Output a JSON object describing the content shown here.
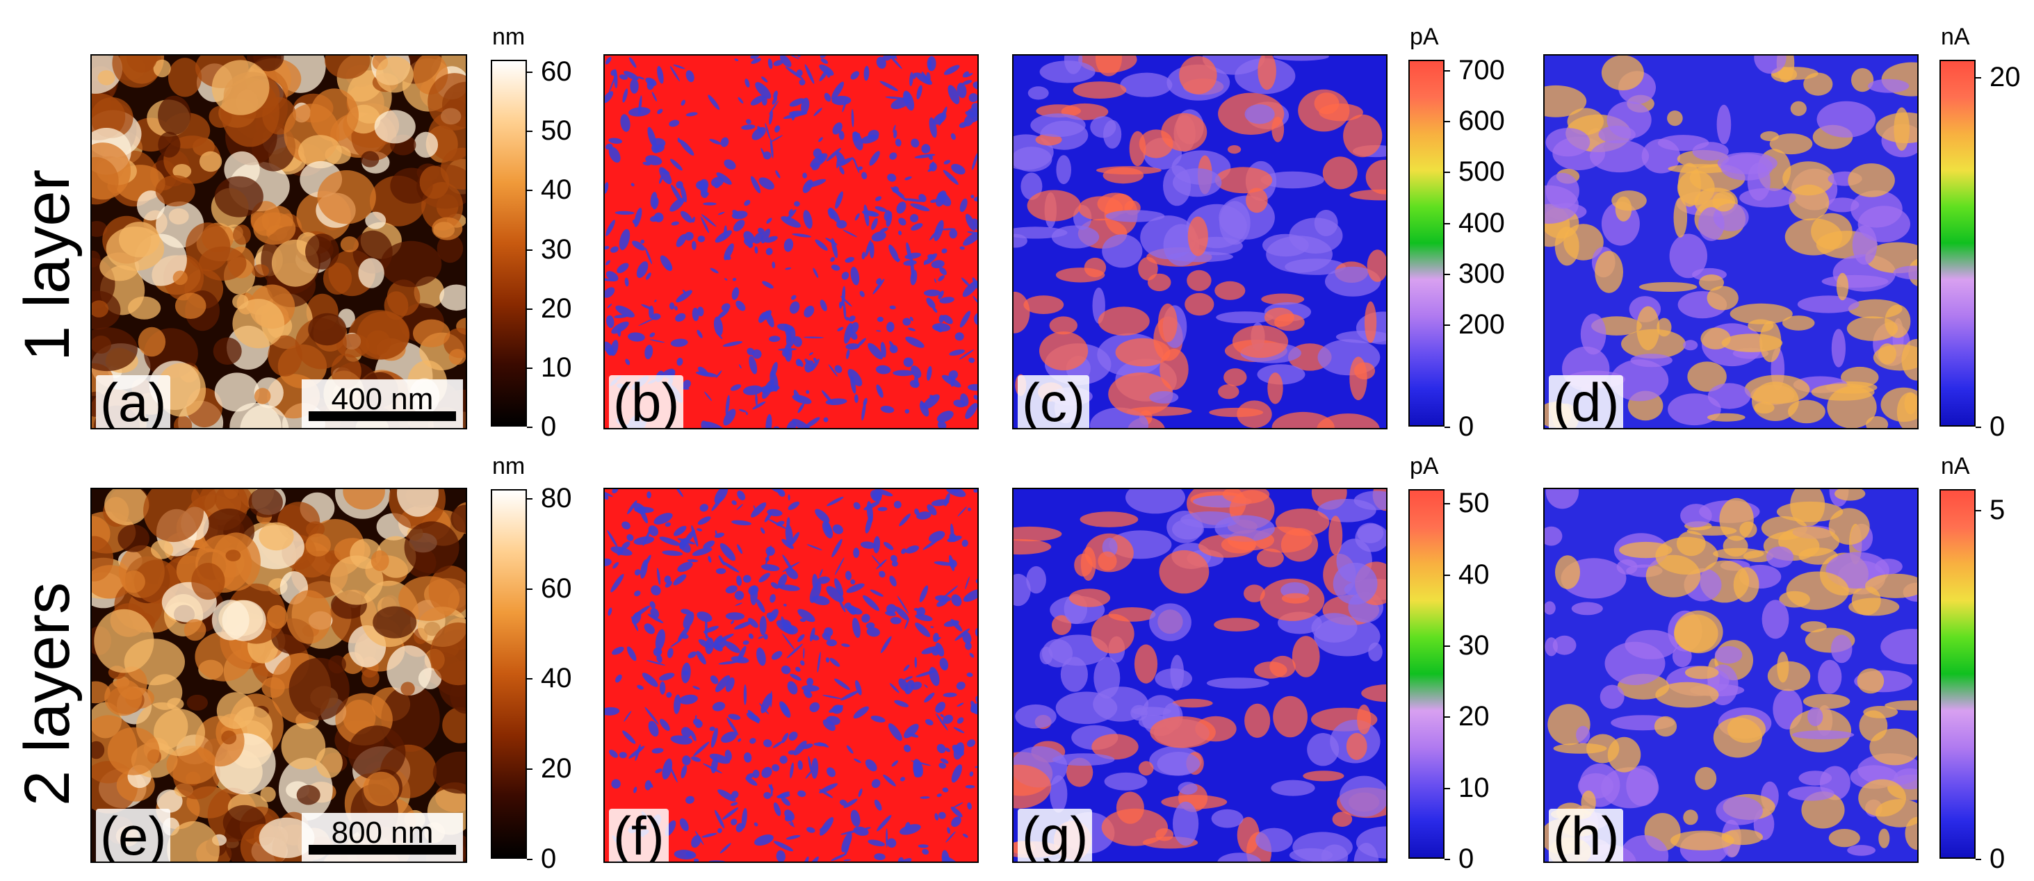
{
  "rows": [
    {
      "label": "1 layer"
    },
    {
      "label": "2 layers"
    }
  ],
  "panels": [
    {
      "id": "a",
      "label": "(a)",
      "map": "topography",
      "colors": [
        "#200800",
        "#5a1a00",
        "#a84a0c",
        "#d87a28",
        "#f4b766",
        "#fff0d8"
      ]
    },
    {
      "id": "b",
      "label": "(b)",
      "map": "binary",
      "colors": [
        "#ff1a1a",
        "#3a3fd6"
      ]
    },
    {
      "id": "c",
      "label": "(c)",
      "map": "current",
      "colors": [
        "#1a1ad8",
        "#8a6cf0",
        "#ff6a4a"
      ]
    },
    {
      "id": "d",
      "label": "(d)",
      "map": "current",
      "colors": [
        "#2a2ae0",
        "#a070f0",
        "#f4b24c"
      ]
    },
    {
      "id": "e",
      "label": "(e)",
      "map": "topography",
      "colors": [
        "#200800",
        "#5a1a00",
        "#a84a0c",
        "#d87a28",
        "#f4b766",
        "#fff0d8"
      ]
    },
    {
      "id": "f",
      "label": "(f)",
      "map": "binary",
      "colors": [
        "#ff1a1a",
        "#3a3fd6"
      ]
    },
    {
      "id": "g",
      "label": "(g)",
      "map": "current",
      "colors": [
        "#1a1ad8",
        "#8a6cf0",
        "#ff6a4a"
      ]
    },
    {
      "id": "h",
      "label": "(h)",
      "map": "current",
      "colors": [
        "#2a2ae0",
        "#a070f0",
        "#f4b24c"
      ]
    }
  ],
  "scalebars": {
    "a": "400 nm",
    "e": "800 nm"
  },
  "colorbars": [
    {
      "id": "topo1",
      "unit": "nm",
      "ticks": [
        "60",
        "50",
        "40",
        "30",
        "20",
        "10",
        "0"
      ],
      "min": 0,
      "max": 62,
      "values": [
        60,
        50,
        40,
        30,
        20,
        10,
        0
      ],
      "palette": "afm"
    },
    {
      "id": "cur1",
      "unit": "pA",
      "ticks": [
        "700",
        "600",
        "500",
        "400",
        "300",
        "200",
        "0"
      ],
      "min": 0,
      "max": 720,
      "values": [
        700,
        600,
        500,
        400,
        300,
        200,
        0
      ],
      "palette": "current"
    },
    {
      "id": "cur2",
      "unit": "nA",
      "ticks": [
        "20",
        "0"
      ],
      "min": 0,
      "max": 21,
      "values": [
        20,
        0
      ],
      "palette": "current"
    },
    {
      "id": "topo2",
      "unit": "nm",
      "ticks": [
        "80",
        "60",
        "40",
        "20",
        "0"
      ],
      "min": 0,
      "max": 82,
      "values": [
        80,
        60,
        40,
        20,
        0
      ],
      "palette": "afm"
    },
    {
      "id": "cur3",
      "unit": "pA",
      "ticks": [
        "50",
        "40",
        "30",
        "20",
        "10",
        "0"
      ],
      "min": 0,
      "max": 52,
      "values": [
        50,
        40,
        30,
        20,
        10,
        0
      ],
      "palette": "current"
    },
    {
      "id": "cur4",
      "unit": "nA",
      "ticks": [
        "5",
        "0"
      ],
      "min": 0,
      "max": 5.3,
      "values": [
        5,
        0
      ],
      "palette": "current"
    }
  ],
  "palettes": {
    "afm": [
      "#000000",
      "#3a0a00",
      "#8a2a00",
      "#c85a10",
      "#f09a3a",
      "#ffd090",
      "#ffffff"
    ],
    "current": [
      "#1010c0",
      "#2a2ae8",
      "#6a50f0",
      "#b07af0",
      "#d8a0f0",
      "#10c020",
      "#60e020",
      "#f0e040",
      "#f8b040",
      "#ff7050",
      "#ff5040"
    ]
  }
}
